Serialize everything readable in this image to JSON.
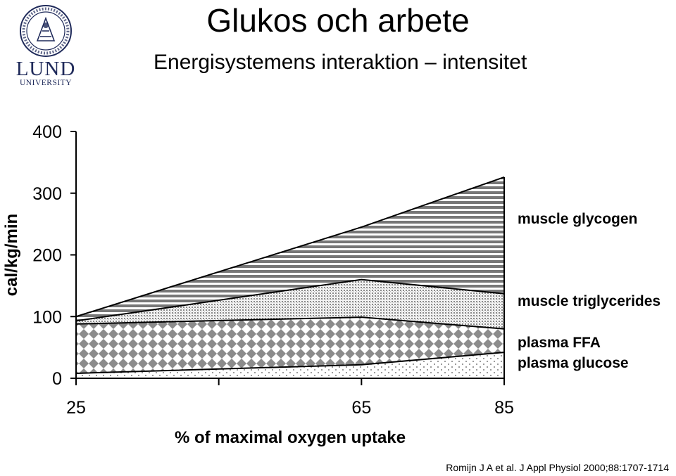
{
  "logo": {
    "wordmark": "LUND",
    "subtext": "UNIVERSITY"
  },
  "header": {
    "title": "Glukos och arbete",
    "subtitle": "Energisystemens interaktion – intensitet"
  },
  "credit": "Romijn J A et al. J Appl Physiol 2000;88:1707-1714",
  "chart_data": {
    "type": "area",
    "stacked": true,
    "x": [
      25,
      65,
      85
    ],
    "xlabel": "% of maximal oxygen uptake",
    "ylabel": "cal/kg/min",
    "xlim": [
      25,
      85
    ],
    "ylim": [
      0,
      400
    ],
    "xticks": [
      "25",
      "65",
      "85"
    ],
    "yticks": [
      "0",
      "100",
      "200",
      "300",
      "400"
    ],
    "series": [
      {
        "name": "plasma glucose",
        "values": [
          8,
          22,
          42
        ],
        "pattern": "sparse-dots"
      },
      {
        "name": "plasma FFA",
        "values": [
          80,
          77,
          38
        ],
        "pattern": "diamond-checker"
      },
      {
        "name": "muscle triglycerides",
        "values": [
          5,
          61,
          57
        ],
        "pattern": "fine-dots"
      },
      {
        "name": "muscle glycogen",
        "values": [
          7,
          85,
          189
        ],
        "pattern": "horizontal-stripes"
      }
    ],
    "legend_placement": "right, aligned with series",
    "grid": false
  }
}
